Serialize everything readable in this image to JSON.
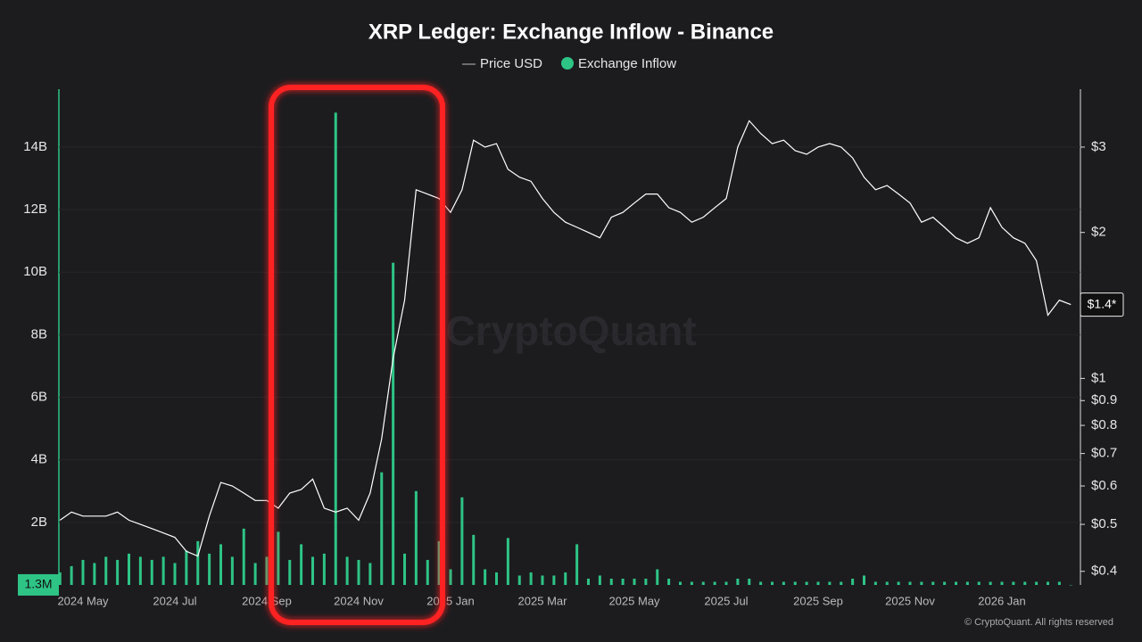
{
  "chart_data": {
    "type": "combo",
    "title": "XRP Ledger: Exchange Inflow - Binance",
    "watermark": "CryptoQuant",
    "copyright": "© CryptoQuant. All rights reserved",
    "categories": [
      null,
      null,
      "2024 May",
      null,
      null,
      null,
      null,
      null,
      null,
      null,
      "2024 Jul",
      null,
      null,
      null,
      null,
      null,
      null,
      null,
      "2024 Sep",
      null,
      null,
      null,
      null,
      null,
      null,
      null,
      "2024 Nov",
      null,
      null,
      null,
      null,
      null,
      null,
      null,
      "2025 Jan",
      null,
      null,
      null,
      null,
      null,
      null,
      null,
      "2025 Mar",
      null,
      null,
      null,
      null,
      null,
      null,
      null,
      "2025 May",
      null,
      null,
      null,
      null,
      null,
      null,
      null,
      "2025 Jul",
      null,
      null,
      null,
      null,
      null,
      null,
      null,
      "2025 Sep",
      null,
      null,
      null,
      null,
      null,
      null,
      null,
      "2025 Nov",
      null,
      null,
      null,
      null,
      null,
      null,
      null,
      "2026 Jan",
      null,
      null,
      null,
      null,
      null,
      null
    ],
    "series": [
      {
        "name": "Price USD",
        "type": "line",
        "axis": "y2",
        "color": "#ffffff",
        "values": [
          0.51,
          0.53,
          0.52,
          0.52,
          0.52,
          0.53,
          0.51,
          0.5,
          0.49,
          0.48,
          0.47,
          0.44,
          0.43,
          0.52,
          0.61,
          0.6,
          0.58,
          0.56,
          0.56,
          0.54,
          0.58,
          0.59,
          0.62,
          0.54,
          0.53,
          0.54,
          0.51,
          0.58,
          0.75,
          1.1,
          1.45,
          2.45,
          2.4,
          2.35,
          2.2,
          2.45,
          3.1,
          3.0,
          3.05,
          2.7,
          2.6,
          2.55,
          2.35,
          2.2,
          2.1,
          2.05,
          2.0,
          1.95,
          2.15,
          2.2,
          2.3,
          2.4,
          2.4,
          2.25,
          2.2,
          2.1,
          2.15,
          2.25,
          2.35,
          3.0,
          3.4,
          3.2,
          3.05,
          3.1,
          2.95,
          2.9,
          3.0,
          3.05,
          3.0,
          2.85,
          2.6,
          2.45,
          2.5,
          2.4,
          2.3,
          2.1,
          2.15,
          2.05,
          1.95,
          1.9,
          1.95,
          2.25,
          2.05,
          1.95,
          1.9,
          1.75,
          1.35,
          1.45,
          1.42
        ]
      },
      {
        "name": "Exchange Inflow",
        "type": "bar",
        "axis": "y",
        "color": "#2ec486",
        "values": [
          0.4,
          0.6,
          0.8,
          0.7,
          0.9,
          0.8,
          1.0,
          0.9,
          0.8,
          0.9,
          0.7,
          1.1,
          1.4,
          1.0,
          1.3,
          0.9,
          1.8,
          0.7,
          0.9,
          1.7,
          0.8,
          1.3,
          0.9,
          1.0,
          15.1,
          0.9,
          0.8,
          0.7,
          3.6,
          10.3,
          1.0,
          3.0,
          0.8,
          1.4,
          0.5,
          2.8,
          1.6,
          0.5,
          0.4,
          1.5,
          0.3,
          0.4,
          0.3,
          0.3,
          0.4,
          1.3,
          0.2,
          0.3,
          0.2,
          0.2,
          0.2,
          0.2,
          0.5,
          0.2,
          0.1,
          0.1,
          0.1,
          0.1,
          0.1,
          0.2,
          0.2,
          0.1,
          0.1,
          0.1,
          0.1,
          0.1,
          0.1,
          0.1,
          0.1,
          0.2,
          0.3,
          0.1,
          0.1,
          0.1,
          0.1,
          0.1,
          0.1,
          0.1,
          0.1,
          0.1,
          0.1,
          0.1,
          0.1,
          0.1,
          0.1,
          0.1,
          0.1,
          0.1,
          0.0013
        ]
      }
    ],
    "ylim": [
      0,
      15.85
    ],
    "yticks": [
      {
        "value": 2,
        "label": "2B"
      },
      {
        "value": 4,
        "label": "4B"
      },
      {
        "value": 6,
        "label": "6B"
      },
      {
        "value": 8,
        "label": "8B"
      },
      {
        "value": 10,
        "label": "10B"
      },
      {
        "value": 12,
        "label": "12B"
      },
      {
        "value": 14,
        "label": "14B"
      }
    ],
    "y2lim": [
      0.375,
      3.95
    ],
    "y2scale": "log",
    "y2ticks": [
      {
        "value": 0.4,
        "label": "$0.4"
      },
      {
        "value": 0.5,
        "label": "$0.5"
      },
      {
        "value": 0.6,
        "label": "$0.6"
      },
      {
        "value": 0.7,
        "label": "$0.7"
      },
      {
        "value": 0.8,
        "label": "$0.8"
      },
      {
        "value": 0.9,
        "label": "$0.9"
      },
      {
        "value": 1,
        "label": "$1"
      },
      {
        "value": 2,
        "label": "$2"
      },
      {
        "value": 3,
        "label": "$3"
      }
    ],
    "y_marker": {
      "value": 0.0013,
      "label": "1.3M"
    },
    "y2_marker": {
      "value": 1.42,
      "label": "$1.4*"
    },
    "grid": true,
    "legend": "top"
  }
}
